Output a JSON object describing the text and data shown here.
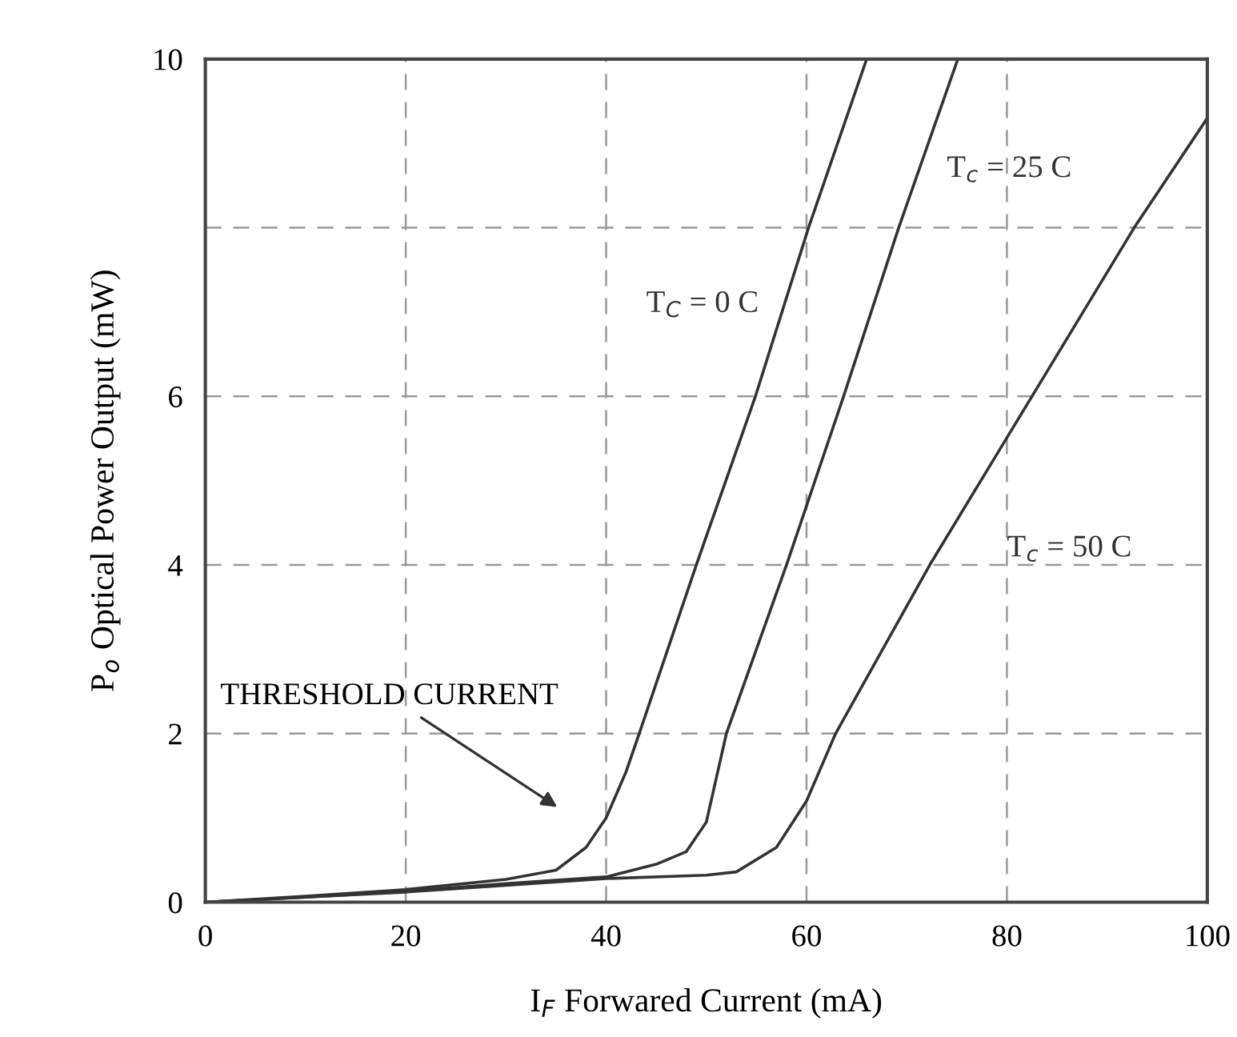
{
  "chart_data": {
    "type": "line",
    "xlabel": "I$_{F}$ Forwared Current (mA)",
    "ylabel": "P$_{o}$ Optical Power Output (mW)",
    "xlim": [
      0,
      100
    ],
    "ylim": [
      0,
      10
    ],
    "xticks": [
      0,
      20,
      40,
      60,
      80,
      100
    ],
    "yticks": [
      0,
      2,
      4,
      6,
      {
        "value": 8,
        "label": null
      },
      10
    ],
    "grid": true,
    "line_style": "solid",
    "marker": "none",
    "annotations": [
      "THRESHOLD CURRENT"
    ],
    "series": [
      {
        "name": "T$_{C}$ = 0 C",
        "color": "#333333",
        "x": [
          0,
          10,
          20,
          30,
          35,
          38,
          40,
          42,
          43.3,
          49,
          54.9,
          60.2,
          66
        ],
        "values": [
          0,
          0.07,
          0.15,
          0.27,
          0.38,
          0.65,
          1.0,
          1.55,
          2,
          4,
          6,
          8,
          10
        ]
      },
      {
        "name": "T$_{c}$ = 25 C",
        "color": "#333333",
        "x": [
          0,
          10,
          20,
          30,
          40,
          45,
          48,
          50,
          52,
          58,
          63.7,
          69.2,
          75.1
        ],
        "values": [
          0,
          0.06,
          0.13,
          0.22,
          0.3,
          0.45,
          0.6,
          0.95,
          2,
          4,
          6,
          8,
          10
        ]
      },
      {
        "name": "T$_{c}$ = 50 C",
        "color": "#333333",
        "x": [
          0,
          10,
          20,
          30,
          40,
          50,
          53,
          57,
          60,
          62.9,
          72.3,
          82.5,
          92.7,
          100
        ],
        "values": [
          0,
          0.06,
          0.12,
          0.2,
          0.28,
          0.32,
          0.36,
          0.65,
          1.2,
          2,
          4,
          6,
          8,
          9.3
        ]
      }
    ]
  }
}
